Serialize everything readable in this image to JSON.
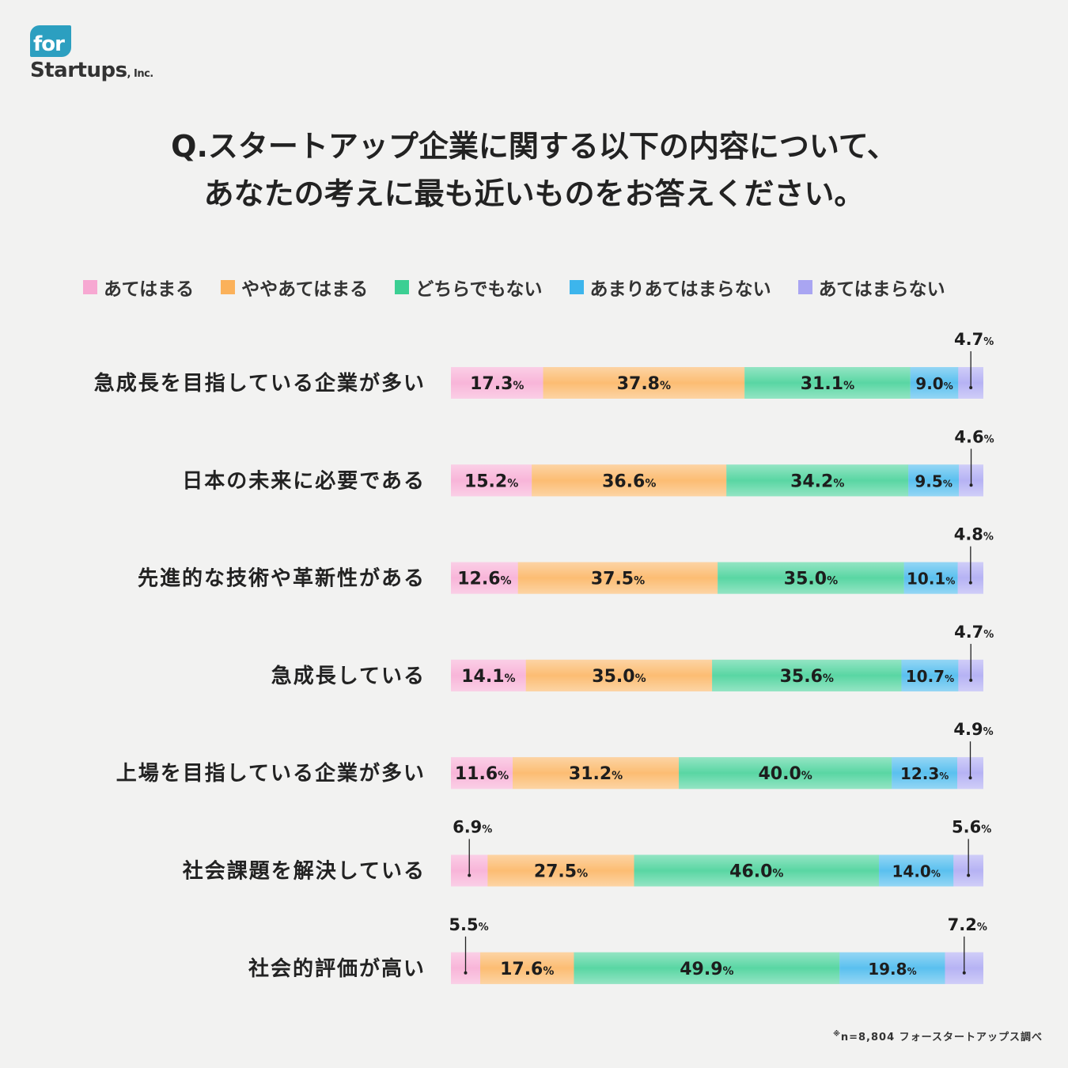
{
  "brand": {
    "logo_for": "for",
    "logo_name": "Startups",
    "logo_inc": ", Inc."
  },
  "question": {
    "line1": "Q.スタートアップ企業に関する以下の内容について、",
    "line2": "あなたの考えに最も近いものをお答えください。"
  },
  "footnote": {
    "mark": "※",
    "text": "n=8,804 フォースタートアップス調べ"
  },
  "colors": {
    "pink": "#f7a8d2",
    "orange": "#fbb15a",
    "green": "#3ccf93",
    "blue": "#3db5ec",
    "lavender": "#a9a5f2"
  },
  "chart_data": {
    "type": "bar",
    "orientation": "horizontal",
    "stacked": true,
    "unit": "%",
    "title": "Q.スタートアップ企業に関する以下の内容について、あなたの考えに最も近いものをお答えください。",
    "legend_position": "top",
    "categories": [
      "急成長を目指している企業が多い",
      "日本の未来に必要である",
      "先進的な技術や革新性がある",
      "急成長している",
      "上場を目指している企業が多い",
      "社会課題を解決している",
      "社会的評価が高い"
    ],
    "series": [
      {
        "name": "あてはまる",
        "color": "#f7a8d2",
        "values": [
          17.3,
          15.2,
          12.6,
          14.1,
          11.6,
          6.9,
          5.5
        ]
      },
      {
        "name": "ややあてはまる",
        "color": "#fbb15a",
        "values": [
          37.8,
          36.6,
          37.5,
          35.0,
          31.2,
          27.5,
          17.6
        ]
      },
      {
        "name": "どちらでもない",
        "color": "#3ccf93",
        "values": [
          31.1,
          34.2,
          35.0,
          35.6,
          40.0,
          46.0,
          49.9
        ]
      },
      {
        "name": "あまりあてはまらない",
        "color": "#3db5ec",
        "values": [
          9.0,
          9.5,
          10.1,
          10.7,
          12.3,
          14.0,
          19.8
        ]
      },
      {
        "name": "あてはまらない",
        "color": "#a9a5f2",
        "values": [
          4.7,
          4.6,
          4.8,
          4.7,
          4.9,
          5.6,
          7.2
        ]
      }
    ]
  }
}
